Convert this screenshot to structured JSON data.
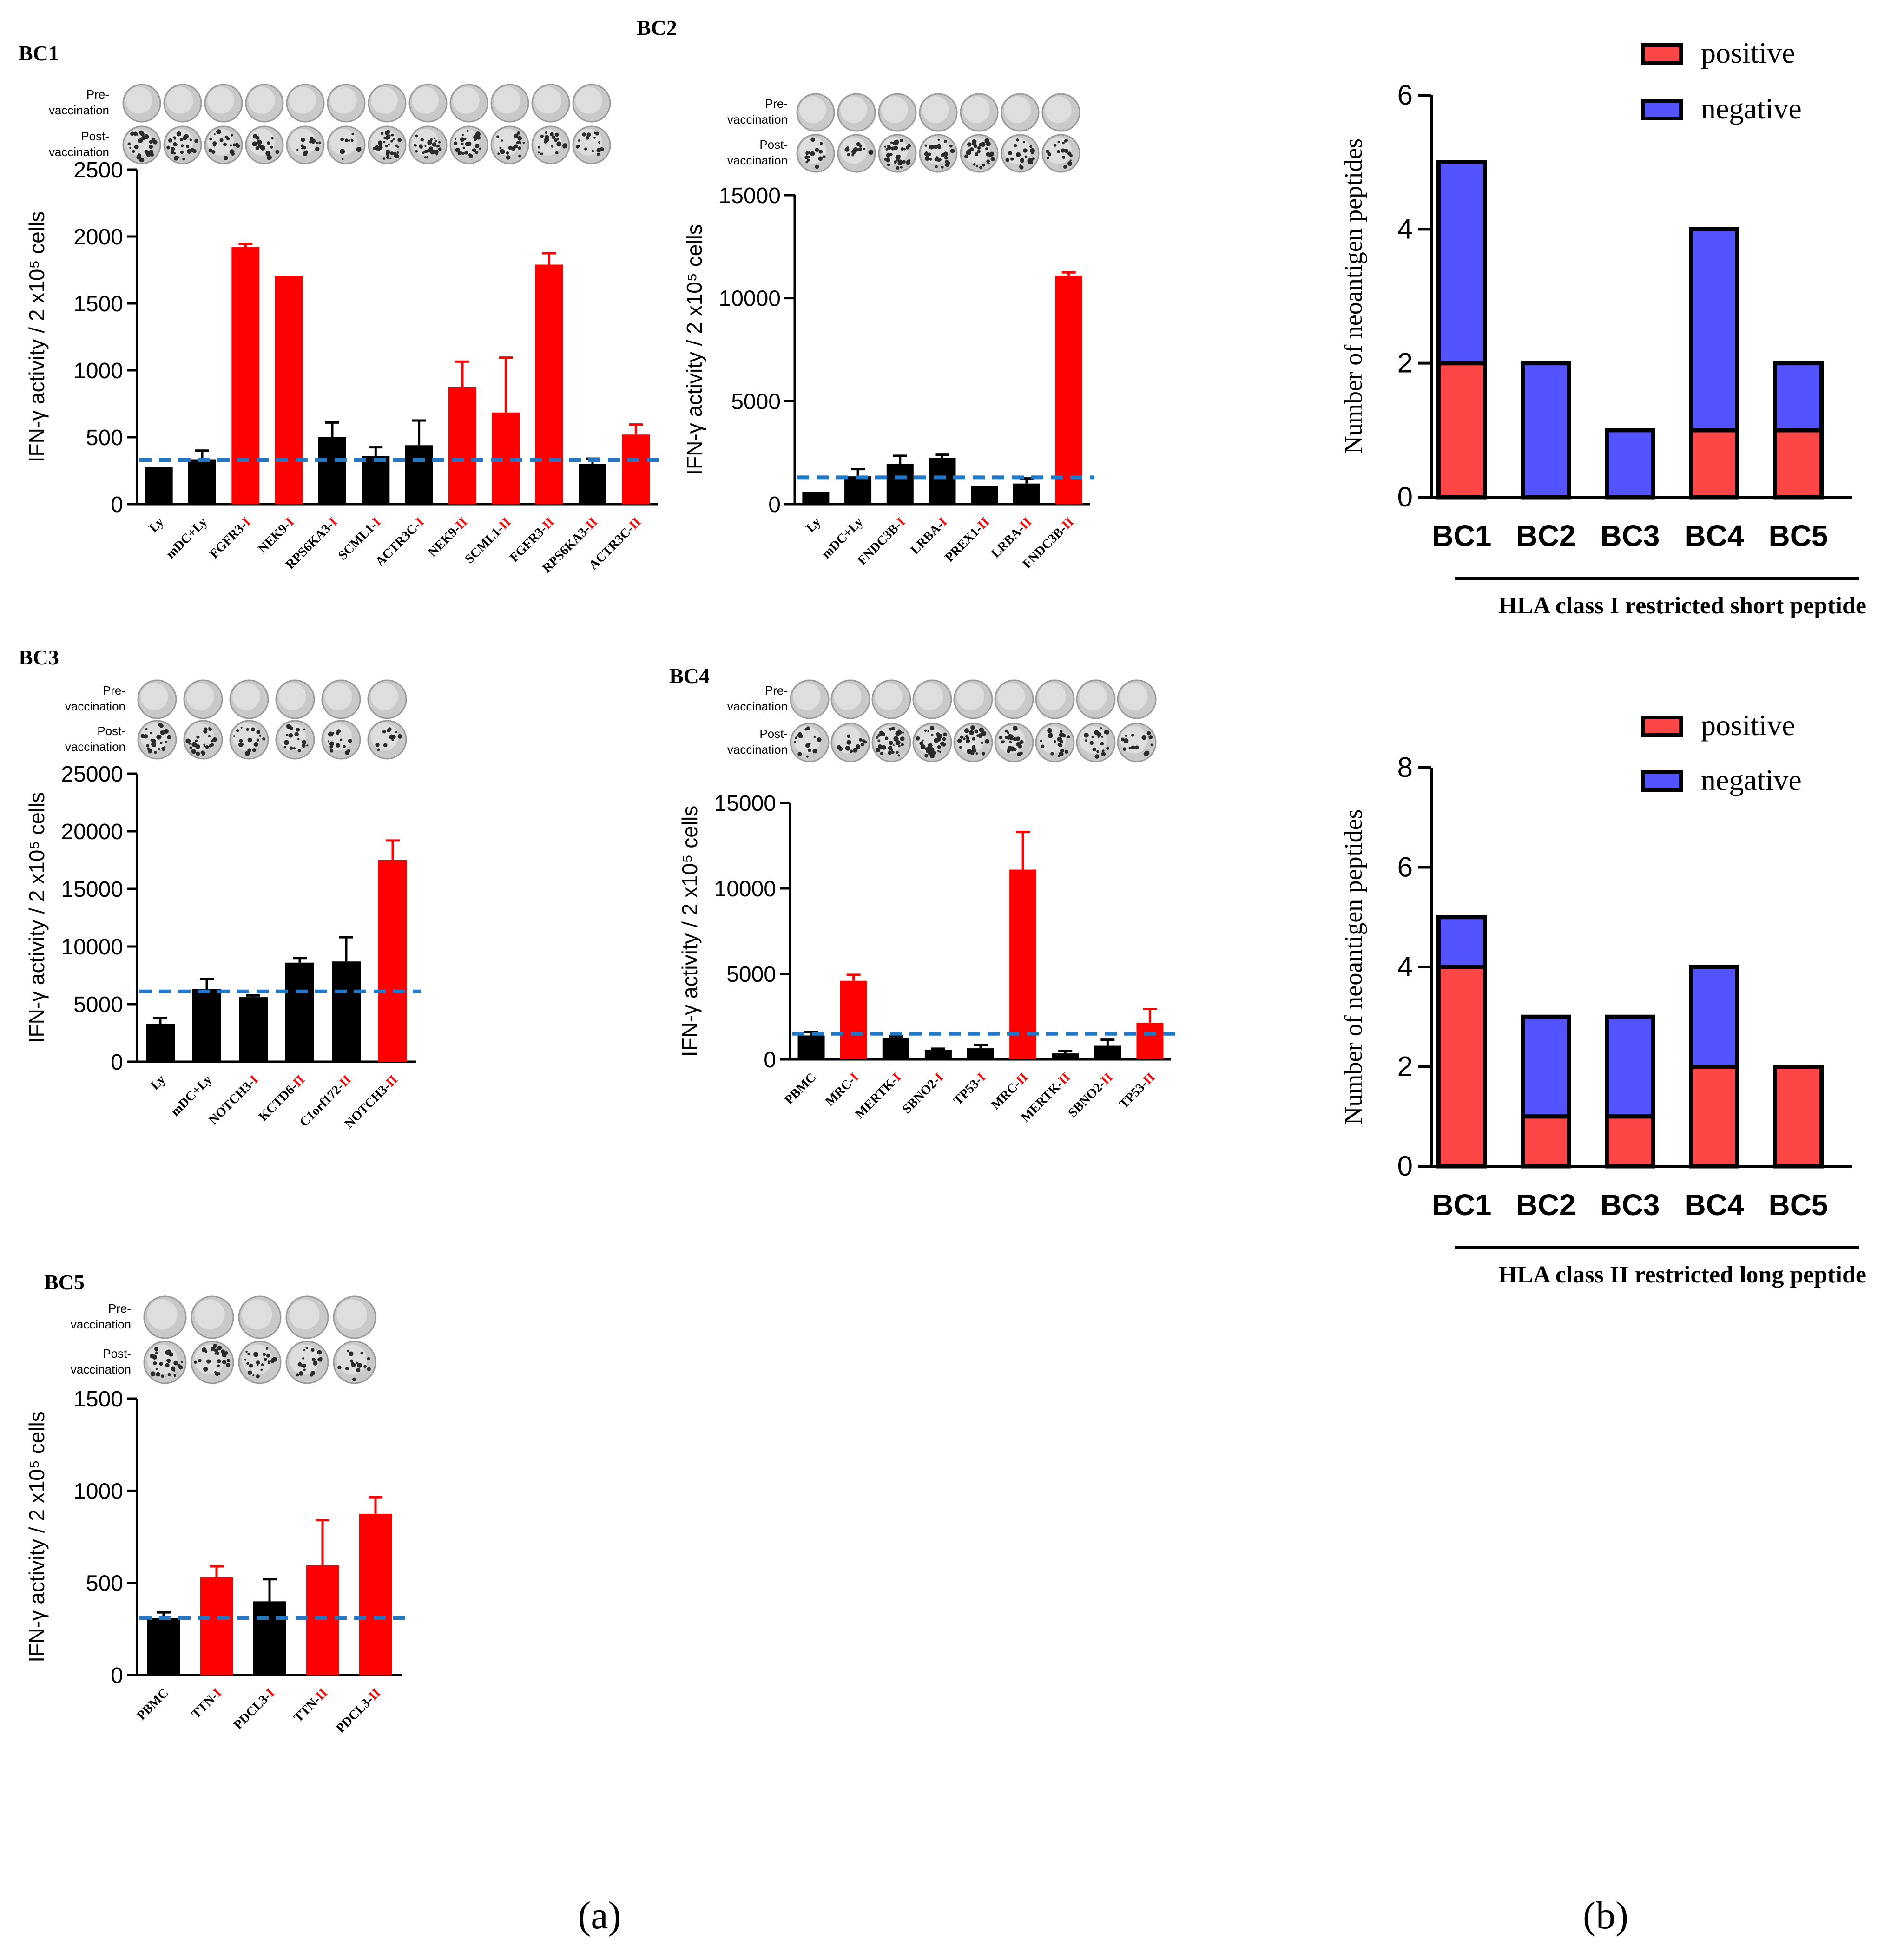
{
  "colors": {
    "positive": "#fe0000",
    "control": "#000000",
    "negative_seg": "#5353ff",
    "positive_seg": "#ff4646",
    "threshold": "#1f78c8"
  },
  "panel_label_a": "(a)",
  "panel_label_b": "(b)",
  "well_labels": {
    "pre": [
      "Pre-",
      "vaccination"
    ],
    "post": [
      "Post-",
      "vaccination"
    ]
  },
  "chart_data": [
    {
      "type": "bar",
      "id": "bc1",
      "title": "BC1",
      "ylabel": "IFN-γ activity / 2 x10⁵ cells",
      "ylim": [
        0,
        2500
      ],
      "yticks": [
        "0",
        "500",
        "1000",
        "1500",
        "2000",
        "2500"
      ],
      "threshold": 330,
      "categories": [
        {
          "base": "Ly",
          "suffix": ""
        },
        {
          "base": "mDC+Ly",
          "suffix": ""
        },
        {
          "base": "FGFR3-",
          "suffix": "I"
        },
        {
          "base": "NEK9-",
          "suffix": "I"
        },
        {
          "base": "RPS6KA3-",
          "suffix": "I"
        },
        {
          "base": "SCML1-",
          "suffix": "I"
        },
        {
          "base": "ACTR3C-",
          "suffix": "I"
        },
        {
          "base": "NEK9-",
          "suffix": "II"
        },
        {
          "base": "SCML1-",
          "suffix": "II"
        },
        {
          "base": "FGFR3-",
          "suffix": "II"
        },
        {
          "base": "RPS6KA3-",
          "suffix": "II"
        },
        {
          "base": "ACTR3C-",
          "suffix": "II"
        }
      ],
      "values": [
        275,
        335,
        1920,
        1705,
        500,
        360,
        440,
        875,
        685,
        1790,
        300,
        520
      ],
      "errors": [
        0,
        65,
        25,
        0,
        110,
        65,
        185,
        190,
        410,
        85,
        40,
        75
      ],
      "positive": [
        false,
        false,
        true,
        true,
        false,
        false,
        false,
        true,
        true,
        true,
        false,
        true
      ]
    },
    {
      "type": "bar",
      "id": "bc2",
      "title": "BC2",
      "ylabel": "IFN-γ activity / 2 x10⁵ cells",
      "ylim": [
        0,
        15000
      ],
      "yticks": [
        "0",
        "5000",
        "10000",
        "15000"
      ],
      "threshold": 1300,
      "categories": [
        {
          "base": "Ly",
          "suffix": ""
        },
        {
          "base": "mDC+Ly",
          "suffix": ""
        },
        {
          "base": "FNDC3B-",
          "suffix": "I"
        },
        {
          "base": "LRBA-",
          "suffix": "I"
        },
        {
          "base": "PREX1-",
          "suffix": "II"
        },
        {
          "base": "LRBA-",
          "suffix": "II"
        },
        {
          "base": "FNDC3B-",
          "suffix": "II"
        }
      ],
      "values": [
        600,
        1350,
        1950,
        2250,
        900,
        1000,
        11100
      ],
      "errors": [
        0,
        350,
        400,
        150,
        0,
        250,
        150
      ],
      "positive": [
        false,
        false,
        false,
        false,
        false,
        false,
        true
      ]
    },
    {
      "type": "bar",
      "id": "bc3",
      "title": "BC3",
      "ylabel": "IFN-γ activity / 2 x10⁵ cells",
      "ylim": [
        0,
        25000
      ],
      "yticks": [
        "0",
        "5000",
        "10000",
        "15000",
        "20000",
        "25000"
      ],
      "threshold": 6100,
      "categories": [
        {
          "base": "Ly",
          "suffix": ""
        },
        {
          "base": "mDC+Ly",
          "suffix": ""
        },
        {
          "base": "NOTCH3-",
          "suffix": "I"
        },
        {
          "base": "KCTD6-",
          "suffix": "II"
        },
        {
          "base": "C1orf172-",
          "suffix": "II"
        },
        {
          "base": "NOTCH3-",
          "suffix": "II"
        }
      ],
      "values": [
        3300,
        6300,
        5600,
        8600,
        8700,
        17500
      ],
      "errors": [
        500,
        900,
        150,
        400,
        2100,
        1700
      ],
      "positive": [
        false,
        false,
        false,
        false,
        false,
        true
      ]
    },
    {
      "type": "bar",
      "id": "bc4",
      "title": "BC4",
      "ylabel": "IFN-γ activity / 2 x10⁵ cells",
      "ylim": [
        0,
        15000
      ],
      "yticks": [
        "0",
        "5000",
        "10000",
        "15000"
      ],
      "threshold": 1500,
      "categories": [
        {
          "base": "PBMC",
          "suffix": ""
        },
        {
          "base": "MRC-",
          "suffix": "I"
        },
        {
          "base": "MERTK-",
          "suffix": "I"
        },
        {
          "base": "SBNO2-",
          "suffix": "I"
        },
        {
          "base": "TP53-",
          "suffix": "I"
        },
        {
          "base": "MRC-",
          "suffix": "II"
        },
        {
          "base": "MERTK-",
          "suffix": "II"
        },
        {
          "base": "SBNO2-",
          "suffix": "II"
        },
        {
          "base": "TP53-",
          "suffix": "II"
        }
      ],
      "values": [
        1400,
        4600,
        1250,
        550,
        650,
        11100,
        350,
        800,
        2150
      ],
      "errors": [
        200,
        350,
        100,
        80,
        200,
        2200,
        150,
        350,
        800
      ],
      "positive": [
        false,
        true,
        false,
        false,
        false,
        true,
        false,
        false,
        true
      ]
    },
    {
      "type": "bar",
      "id": "bc5",
      "title": "BC5",
      "ylabel": "IFN-γ activity / 2 x10⁵ cells",
      "ylim": [
        0,
        1500
      ],
      "yticks": [
        "0",
        "500",
        "1000",
        "1500"
      ],
      "threshold": 310,
      "categories": [
        {
          "base": "PBMC",
          "suffix": ""
        },
        {
          "base": "TTN-",
          "suffix": "I"
        },
        {
          "base": "PDCL3-",
          "suffix": "I"
        },
        {
          "base": "TTN-",
          "suffix": "II"
        },
        {
          "base": "PDCL3-",
          "suffix": "II"
        }
      ],
      "values": [
        310,
        530,
        400,
        595,
        875
      ],
      "errors": [
        30,
        60,
        120,
        245,
        90
      ],
      "positive": [
        false,
        true,
        false,
        true,
        true
      ]
    },
    {
      "type": "bar",
      "id": "hla1",
      "stacked": true,
      "ylabel": "Number of neoantigen peptides",
      "xlabel": "HLA class I restricted short peptide",
      "ylim": [
        0,
        6
      ],
      "yticks": [
        "0",
        "2",
        "4",
        "6"
      ],
      "categories": [
        "BC1",
        "BC2",
        "BC3",
        "BC4",
        "BC5"
      ],
      "series": [
        {
          "name": "positive",
          "values": [
            2,
            0,
            0,
            1,
            1
          ]
        },
        {
          "name": "negative",
          "values": [
            3,
            2,
            1,
            3,
            1
          ]
        }
      ]
    },
    {
      "type": "bar",
      "id": "hla2",
      "stacked": true,
      "ylabel": "Number of neoantigen peptides",
      "xlabel": "HLA class II restricted long peptide",
      "ylim": [
        0,
        8
      ],
      "yticks": [
        "0",
        "2",
        "4",
        "6",
        "8"
      ],
      "categories": [
        "BC1",
        "BC2",
        "BC3",
        "BC4",
        "BC5"
      ],
      "series": [
        {
          "name": "positive",
          "values": [
            4,
            1,
            1,
            2,
            2
          ]
        },
        {
          "name": "negative",
          "values": [
            1,
            2,
            2,
            2,
            0
          ]
        }
      ]
    }
  ]
}
